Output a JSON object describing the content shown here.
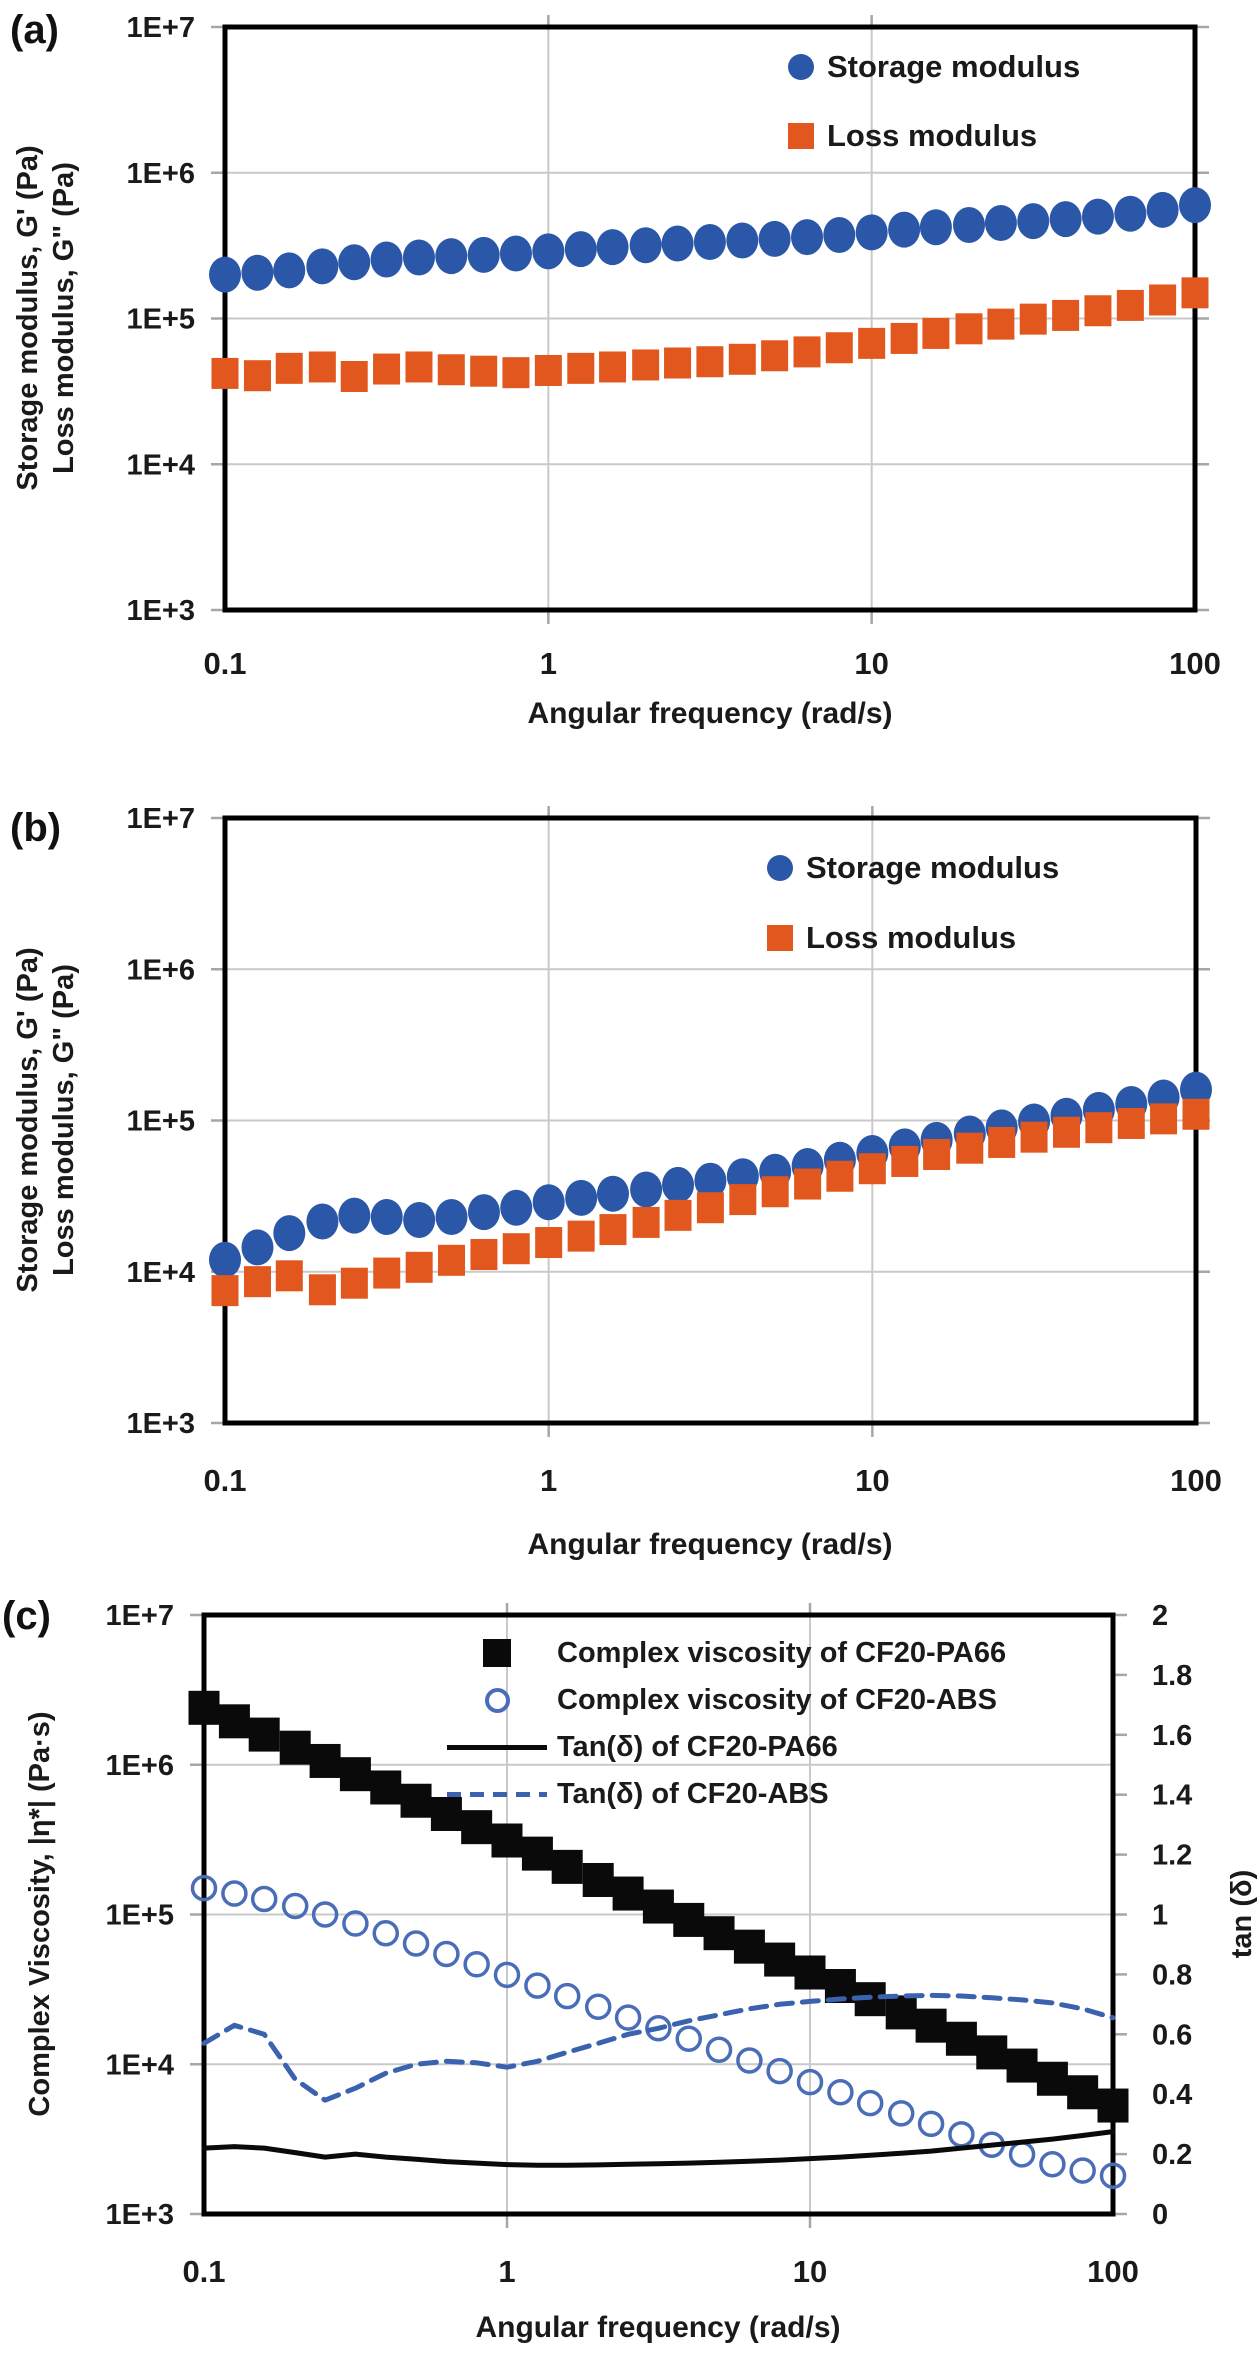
{
  "figure": {
    "background": "#ffffff",
    "frame_color": "#000000",
    "grid_color": "#c9c9c9",
    "text_color": "#1a1a1a"
  },
  "chart_data": [
    {
      "panel_label": "(a)",
      "type": "scatter",
      "xlabel": "Angular frequency (rad/s)",
      "ylabel_lines": [
        "Storage modulus, G' (Pa)",
        "Loss modulus, G\" (Pa)"
      ],
      "xscale": "log",
      "yscale": "log",
      "xlim": [
        0.1,
        100
      ],
      "ylim": [
        1000,
        10000000
      ],
      "x_ticks": [
        "0.1",
        "1",
        "10",
        "100"
      ],
      "y_ticks": [
        "1E+7",
        "1E+6",
        "1E+5",
        "1E+4",
        "1E+3"
      ],
      "grid": true,
      "legend_position": "top-right",
      "x": [
        0.1,
        0.126,
        0.158,
        0.2,
        0.251,
        0.316,
        0.398,
        0.501,
        0.631,
        0.794,
        1,
        1.26,
        1.58,
        2,
        2.51,
        3.16,
        3.98,
        5.01,
        6.31,
        7.94,
        10,
        12.6,
        15.8,
        20,
        25.1,
        31.6,
        39.8,
        50.1,
        63.1,
        79.4,
        100
      ],
      "series": [
        {
          "name": "Storage modulus",
          "kind": "scatter",
          "marker": "circle",
          "color": "#2b57a8",
          "values": [
            200000,
            206000,
            214000,
            228000,
            243000,
            254000,
            262000,
            268000,
            273000,
            279000,
            289000,
            299000,
            309000,
            318000,
            327000,
            335000,
            343000,
            352000,
            362000,
            374000,
            390000,
            407000,
            423000,
            438000,
            452000,
            466000,
            481000,
            500000,
            523000,
            556000,
            600000
          ]
        },
        {
          "name": "Loss modulus",
          "kind": "scatter",
          "marker": "square",
          "color": "#e2571d",
          "values": [
            42000,
            40500,
            45500,
            46500,
            40000,
            45000,
            46500,
            44500,
            43500,
            42500,
            44000,
            45500,
            46500,
            48000,
            49500,
            50500,
            52500,
            55500,
            59000,
            63000,
            67500,
            73000,
            79000,
            85000,
            91500,
            99000,
            105000,
            113000,
            123000,
            134000,
            150000
          ]
        }
      ]
    },
    {
      "panel_label": "(b)",
      "type": "scatter",
      "xlabel": "Angular frequency (rad/s)",
      "ylabel_lines": [
        "Storage modulus, G' (Pa)",
        "Loss modulus, G\" (Pa)"
      ],
      "xscale": "log",
      "yscale": "log",
      "xlim": [
        0.1,
        100
      ],
      "ylim": [
        1000,
        10000000
      ],
      "x_ticks": [
        "0.1",
        "1",
        "10",
        "100"
      ],
      "y_ticks": [
        "1E+7",
        "1E+6",
        "1E+5",
        "1E+4",
        "1E+3"
      ],
      "grid": true,
      "legend_position": "top-right",
      "x": [
        0.1,
        0.126,
        0.158,
        0.2,
        0.251,
        0.316,
        0.398,
        0.501,
        0.631,
        0.794,
        1,
        1.26,
        1.58,
        2,
        2.51,
        3.16,
        3.98,
        5.01,
        6.31,
        7.94,
        10,
        12.6,
        15.8,
        20,
        25.1,
        31.6,
        39.8,
        50.1,
        63.1,
        79.4,
        100
      ],
      "series": [
        {
          "name": "Storage modulus",
          "kind": "scatter",
          "marker": "circle",
          "color": "#2b57a8",
          "values": [
            12000,
            14500,
            18000,
            21500,
            23500,
            23000,
            22000,
            23000,
            24800,
            26500,
            28800,
            30800,
            32800,
            35000,
            37500,
            40000,
            42800,
            45800,
            50000,
            55000,
            61000,
            67500,
            74500,
            82000,
            90000,
            98500,
            107500,
            117500,
            128500,
            142000,
            160000
          ]
        },
        {
          "name": "Loss modulus",
          "kind": "scatter",
          "marker": "square",
          "color": "#e2571d",
          "values": [
            7500,
            8600,
            9400,
            7600,
            8400,
            9800,
            10700,
            11900,
            13000,
            14200,
            15600,
            17200,
            19000,
            21200,
            23600,
            26500,
            30000,
            33800,
            38000,
            42800,
            48000,
            53600,
            59600,
            65600,
            71600,
            77600,
            83600,
            89600,
            95600,
            102500,
            110000
          ]
        }
      ]
    },
    {
      "panel_label": "(c)",
      "type": "scatter",
      "xlabel": "Angular frequency (rad/s)",
      "ylabel_lines": [
        "Complex Viscosity, |η*| (Pa·s)"
      ],
      "y2label": "tan (δ)",
      "xscale": "log",
      "yscale": "log",
      "y2scale": "linear",
      "xlim": [
        0.1,
        100
      ],
      "ylim": [
        1000,
        10000000
      ],
      "y2lim": [
        0,
        2
      ],
      "x_ticks": [
        "0.1",
        "1",
        "10",
        "100"
      ],
      "y_ticks": [
        "1E+7",
        "1E+6",
        "1E+5",
        "1E+4",
        "1E+3"
      ],
      "y2_ticks": [
        "2",
        "1.8",
        "1.6",
        "1.4",
        "1.2",
        "1",
        "0.8",
        "0.6",
        "0.4",
        "0.2",
        "0"
      ],
      "grid": true,
      "legend_position": "top",
      "x": [
        0.1,
        0.126,
        0.158,
        0.2,
        0.251,
        0.316,
        0.398,
        0.501,
        0.631,
        0.794,
        1,
        1.26,
        1.58,
        2,
        2.51,
        3.16,
        3.98,
        5.01,
        6.31,
        7.94,
        10,
        12.6,
        15.8,
        20,
        25.1,
        31.6,
        39.8,
        50.1,
        63.1,
        79.4,
        100
      ],
      "series": [
        {
          "name": "Complex viscosity of CF20-PA66",
          "kind": "scatter",
          "marker": "square-large",
          "color": "#0a0a0a",
          "values": [
            2400000,
            1950000,
            1590000,
            1300000,
            1060000,
            865000,
            705000,
            575000,
            469000,
            383000,
            312000,
            255000,
            208000,
            170000,
            138000,
            113000,
            92000,
            75000,
            61000,
            50000,
            41000,
            33300,
            27200,
            22200,
            18100,
            14800,
            12000,
            9800,
            8000,
            6500,
            5300
          ]
        },
        {
          "name": "Complex viscosity of CF20-ABS",
          "kind": "scatter",
          "marker": "circle-open",
          "color": "#4a6db8",
          "values": [
            150000,
            138000,
            127000,
            114000,
            100000,
            87000,
            75000,
            64000,
            54500,
            46500,
            39500,
            33500,
            28500,
            24200,
            20500,
            17400,
            14800,
            12500,
            10600,
            9000,
            7600,
            6500,
            5500,
            4700,
            4000,
            3400,
            2900,
            2500,
            2150,
            1950,
            1800
          ]
        },
        {
          "name": "Tan(δ) of CF20-PA66",
          "kind": "line",
          "dash": false,
          "axis": "y2",
          "color": "#0a0a0a",
          "values": [
            0.22,
            0.225,
            0.22,
            0.205,
            0.19,
            0.2,
            0.19,
            0.183,
            0.175,
            0.17,
            0.165,
            0.163,
            0.163,
            0.164,
            0.166,
            0.168,
            0.17,
            0.173,
            0.176,
            0.18,
            0.185,
            0.19,
            0.196,
            0.203,
            0.21,
            0.22,
            0.23,
            0.24,
            0.25,
            0.262,
            0.275
          ]
        },
        {
          "name": "Tan(δ) of CF20-ABS",
          "kind": "line",
          "dash": true,
          "axis": "y2",
          "color": "#3b62ae",
          "values": [
            0.57,
            0.63,
            0.6,
            0.45,
            0.38,
            0.42,
            0.47,
            0.5,
            0.51,
            0.505,
            0.49,
            0.51,
            0.54,
            0.57,
            0.6,
            0.62,
            0.645,
            0.665,
            0.685,
            0.7,
            0.71,
            0.718,
            0.724,
            0.728,
            0.73,
            0.728,
            0.722,
            0.715,
            0.705,
            0.685,
            0.655
          ]
        }
      ]
    }
  ]
}
